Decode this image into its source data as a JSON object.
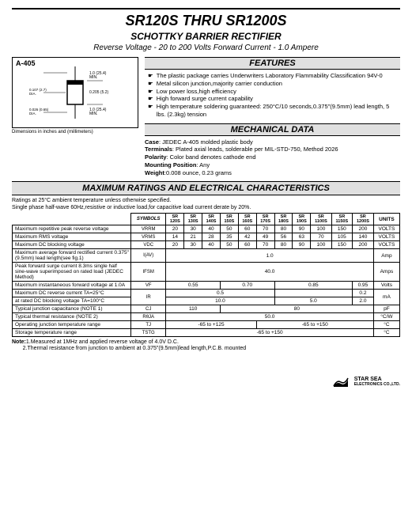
{
  "header": {
    "title": "SR120S THRU SR1200S",
    "subtitle": "SCHOTTKY BARRIER RECTIFIER",
    "desc": "Reverse Voltage - 20 to 200 Volts    Forward Current -  1.0 Ampere"
  },
  "diagram": {
    "label": "A-405",
    "dim_note": "Dimensions in inches and (millimeters)"
  },
  "features": {
    "heading": "FEATURES",
    "items": [
      "The plastic package carries Underwriters Laboratory Flammability Classification 94V-0",
      "Metal silicon junction,majority carrier conduction",
      "Low power loss,high efficiency",
      "High forward surge current capability",
      "High temperature soldering guaranteed: 250°C/10 seconds,0.375\"(9.5mm) lead length, 5 lbs. (2.3kg) tension"
    ]
  },
  "mechdata": {
    "heading": "MECHANICAL DATA",
    "rows": [
      {
        "k": "Case",
        "v": ": JEDEC A-405 molded plastic body"
      },
      {
        "k": "Terminals",
        "v": ": Plated axial leads, solderable per MIL-STD-750, Method 2026"
      },
      {
        "k": "Polarity",
        "v": ": Color band denotes cathode end"
      },
      {
        "k": "Mounting Position",
        "v": ": Any"
      },
      {
        "k": "Weight",
        "v": ":0.008 ounce, 0.23 grams"
      }
    ]
  },
  "maxratings": {
    "heading": "MAXIMUM RATINGS AND ELECTRICAL CHARACTERISTICS",
    "note": "Ratings at 25°C ambient temperature unless otherwise specified.\nSingle phase half-wave 60Hz,resistive or inductive load,for capacitive load current derate by 20%.",
    "cols_sym": "SYMBOLS",
    "parts": [
      "SR 120S",
      "SR 130S",
      "SR 140S",
      "SR 150S",
      "SR 160S",
      "SR 170S",
      "SR 180S",
      "SR 190S",
      "SR 1100S",
      "SR 1150S",
      "SR 1200S"
    ],
    "units_h": "UNITS",
    "rows": [
      {
        "p": "Maximum repetitive peak reverse voltage",
        "s": "VRRM",
        "v": [
          "20",
          "30",
          "40",
          "50",
          "60",
          "70",
          "80",
          "90",
          "100",
          "150",
          "200"
        ],
        "u": "VOLTS"
      },
      {
        "p": "Maximum RMS voltage",
        "s": "VRMS",
        "v": [
          "14",
          "21",
          "28",
          "35",
          "42",
          "49",
          "56",
          "63",
          "70",
          "105",
          "140"
        ],
        "u": "VOLTS"
      },
      {
        "p": "Maximum DC blocking voltage",
        "s": "VDC",
        "v": [
          "20",
          "30",
          "40",
          "50",
          "60",
          "70",
          "80",
          "90",
          "100",
          "150",
          "200"
        ],
        "u": "VOLTS"
      },
      {
        "p": "Maximum average forward rectified current 0.375\"(9.5mm) lead length(see fig.1)",
        "s": "I(AV)",
        "span": "1.0",
        "u": "Amp"
      },
      {
        "p": "Peak forward surge current 8.3ms single half sine-wave superimposed on rated load (JEDEC Method)",
        "s": "IFSM",
        "span": "40.0",
        "u": "Amps"
      },
      {
        "p": "Maximum instantaneous forward voltage at 1.0A",
        "s": "VF",
        "groups": [
          {
            "span": 3,
            "v": "0.55"
          },
          {
            "span": 3,
            "v": "0.70"
          },
          {
            "span": 4,
            "v": "0.85"
          },
          {
            "span": 1,
            "v": "0.95"
          }
        ],
        "u": "Volts"
      },
      {
        "p": "Maximum DC reverse current    TA=25°C",
        "s": "IR",
        "groups": [
          {
            "span": 6,
            "v": "0.5"
          },
          {
            "span": 4,
            "v": ""
          },
          {
            "span": 1,
            "v": "0.2"
          }
        ],
        "u": "mA",
        "rowspan": 2
      },
      {
        "p": "at rated DC blocking voltage    TA=100°C",
        "groups": [
          {
            "span": 6,
            "v": "10.0"
          },
          {
            "span": 4,
            "v": "5.0"
          },
          {
            "span": 1,
            "v": "2.0"
          }
        ]
      },
      {
        "p": "Typical junction capacitance (NOTE 1)",
        "s": "CJ",
        "groups": [
          {
            "span": 3,
            "v": "110"
          },
          {
            "span": 8,
            "v": "80"
          }
        ],
        "u": "pF"
      },
      {
        "p": "Typical thermal resistance (NOTE 2)",
        "s": "RθJA",
        "span": "50.0",
        "u": "°C/W"
      },
      {
        "p": "Operating junction temperature range",
        "s": "TJ",
        "groups": [
          {
            "span": 5,
            "v": "-65 to +125"
          },
          {
            "span": 6,
            "v": "-65 to +150"
          }
        ],
        "u": "°C"
      },
      {
        "p": "Storage temperature range",
        "s": "TSTG",
        "span": "-65 to +150",
        "u": "°C"
      }
    ]
  },
  "footnote": {
    "label": "Note:",
    "n1": "1.Measured at 1MHz and applied reverse voltage of 4.0V D.C.",
    "n2": "2.Thermal resistance from junction to ambient  at 0.375\"(9.5mm)lead length,P.C.B. mounted"
  },
  "footer": {
    "company": "STAR SEA",
    "sub": "ELECTRONICS CO.,LTD."
  }
}
